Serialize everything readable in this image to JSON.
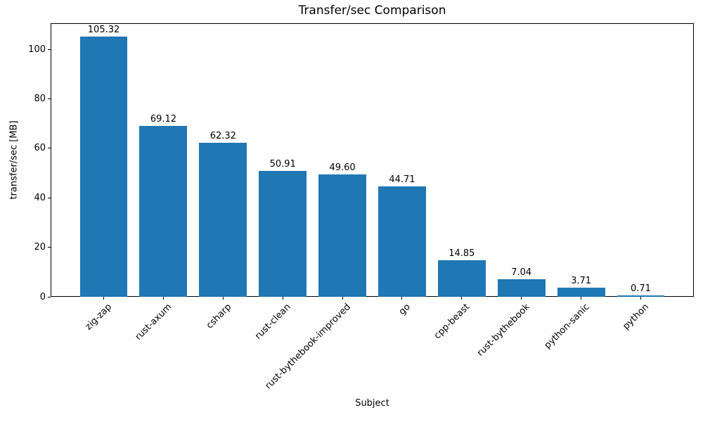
{
  "chart_data": {
    "type": "bar",
    "title": "Transfer/sec Comparison",
    "xlabel": "Subject",
    "ylabel": "transfer/sec [MB]",
    "categories": [
      "zig-zap",
      "rust-axum",
      "csharp",
      "rust-clean",
      "rust-bythebook-improved",
      "go",
      "cpp-beast",
      "rust-bythebook",
      "python-sanic",
      "python"
    ],
    "values": [
      105.32,
      69.12,
      62.32,
      50.91,
      49.6,
      44.71,
      14.85,
      7.04,
      3.71,
      0.71
    ],
    "value_labels": [
      "105.32",
      "69.12",
      "62.32",
      "50.91",
      "49.60",
      "44.71",
      "14.85",
      "7.04",
      "3.71",
      "0.71"
    ],
    "yticks": [
      0,
      20,
      40,
      60,
      80,
      100
    ],
    "ylim": [
      0,
      110.6
    ],
    "bar_color": "#1f77b4",
    "bar_width_fraction": 0.8,
    "grid": false,
    "legend": null,
    "tick_label_rotation_deg": 45
  }
}
